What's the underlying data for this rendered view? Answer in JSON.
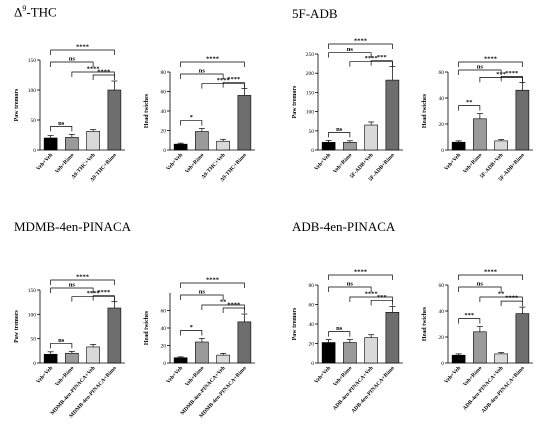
{
  "titles": {
    "thc_pre": "Δ",
    "thc_sup": "9",
    "thc_post": "-THC",
    "adb5f": "5F-ADB",
    "mdmb": "MDMB-4en-PINACA",
    "adb4en": "ADB-4en-PINACA"
  },
  "colors": {
    "veh_veh": "#000000",
    "veh_drug": "#9a9a9a",
    "drug_veh": "#d9d9d9",
    "drug_drug": "#6e6e6e"
  },
  "chart_data": [
    {
      "type": "bar",
      "group": "Δ9-THC",
      "ylabel": "Paw tremors",
      "ylim": [
        0,
        150
      ],
      "yticks": [
        0,
        50,
        100,
        150
      ],
      "categories": [
        "Veh+Veh",
        "Veh+Rimo",
        "Δ9-THC+Veh",
        "Δ9-THC+Rimo"
      ],
      "values": [
        20,
        21,
        31,
        100
      ],
      "errors": [
        4,
        5,
        3,
        15
      ],
      "significance": [
        {
          "pair": [
            0,
            1
          ],
          "label": "ns"
        },
        {
          "pair": [
            0,
            2
          ],
          "label": "ns"
        },
        {
          "pair": [
            0,
            3
          ],
          "label": "****"
        },
        {
          "pair": [
            1,
            3
          ],
          "label": "****"
        },
        {
          "pair": [
            2,
            3
          ],
          "label": "****"
        }
      ]
    },
    {
      "type": "bar",
      "group": "Δ9-THC",
      "ylabel": "Head twiches",
      "ylim": [
        0,
        80
      ],
      "yticks": [
        0,
        20,
        40,
        60,
        80
      ],
      "categories": [
        "Veh+Veh",
        "Veh+Rimo",
        "Δ9-THC+Veh",
        "Δ9-THC+Rimo"
      ],
      "values": [
        6,
        19,
        9,
        56
      ],
      "errors": [
        1,
        3,
        2,
        7
      ],
      "significance": [
        {
          "pair": [
            0,
            1
          ],
          "label": "*"
        },
        {
          "pair": [
            0,
            2
          ],
          "label": "ns"
        },
        {
          "pair": [
            0,
            3
          ],
          "label": "****"
        },
        {
          "pair": [
            1,
            3
          ],
          "label": "****"
        },
        {
          "pair": [
            2,
            3
          ],
          "label": "****"
        }
      ]
    },
    {
      "type": "bar",
      "group": "5F-ADB",
      "ylabel": "Paw tremors",
      "ylim": [
        0,
        250
      ],
      "yticks": [
        0,
        50,
        100,
        150,
        200,
        250
      ],
      "categories": [
        "Veh+Veh",
        "Veh+Rimo",
        "5F-ADB+Veh",
        "5F-ADB+Rimo"
      ],
      "values": [
        20,
        20,
        65,
        182
      ],
      "errors": [
        5,
        4,
        8,
        35
      ],
      "significance": [
        {
          "pair": [
            0,
            1
          ],
          "label": "ns"
        },
        {
          "pair": [
            0,
            2
          ],
          "label": "ns"
        },
        {
          "pair": [
            0,
            3
          ],
          "label": "****"
        },
        {
          "pair": [
            1,
            3
          ],
          "label": "****"
        },
        {
          "pair": [
            2,
            3
          ],
          "label": "***"
        }
      ]
    },
    {
      "type": "bar",
      "group": "5F-ADB",
      "ylabel": "Head twiches",
      "ylim": [
        0,
        60
      ],
      "yticks": [
        0,
        20,
        40,
        60
      ],
      "categories": [
        "Veh+Veh",
        "Veh+Rimo",
        "5F-ADB+Veh",
        "5F-ADB+Rimo"
      ],
      "values": [
        6,
        24,
        7,
        46
      ],
      "errors": [
        1,
        4,
        1,
        6
      ],
      "significance": [
        {
          "pair": [
            0,
            1
          ],
          "label": "**"
        },
        {
          "pair": [
            0,
            2
          ],
          "label": "ns"
        },
        {
          "pair": [
            0,
            3
          ],
          "label": "****"
        },
        {
          "pair": [
            1,
            3
          ],
          "label": "***"
        },
        {
          "pair": [
            2,
            3
          ],
          "label": "****"
        }
      ]
    },
    {
      "type": "bar",
      "group": "MDMB-4en-PINACA",
      "ylabel": "Paw tremors",
      "ylim": [
        0,
        150
      ],
      "yticks": [
        0,
        50,
        100,
        150
      ],
      "categories": [
        "Veh+Veh",
        "Veh+Rimo",
        "MDMB-4en-PINACA+Veh",
        "MDMB-4en-PINACA+Rimo"
      ],
      "values": [
        18,
        20,
        33,
        113
      ],
      "errors": [
        5,
        4,
        5,
        13
      ],
      "significance": [
        {
          "pair": [
            0,
            1
          ],
          "label": "ns"
        },
        {
          "pair": [
            0,
            2
          ],
          "label": "ns"
        },
        {
          "pair": [
            0,
            3
          ],
          "label": "****"
        },
        {
          "pair": [
            1,
            3
          ],
          "label": "****"
        },
        {
          "pair": [
            2,
            3
          ],
          "label": "****"
        }
      ]
    },
    {
      "type": "bar",
      "group": "MDMB-4en-PINACA",
      "ylabel": "Head twiches",
      "ylim": [
        0,
        80
      ],
      "yticks": [
        0,
        20,
        40,
        60
      ],
      "categories": [
        "Veh+Veh",
        "Veh+Rimo",
        "MDMB-4en-PINACA+Veh",
        "MDMB-4en-PINACA+Rimo"
      ],
      "values": [
        6,
        24,
        9,
        47
      ],
      "errors": [
        1,
        4,
        2,
        9
      ],
      "significance": [
        {
          "pair": [
            0,
            1
          ],
          "label": "*"
        },
        {
          "pair": [
            0,
            2
          ],
          "label": "ns"
        },
        {
          "pair": [
            0,
            3
          ],
          "label": "****"
        },
        {
          "pair": [
            1,
            3
          ],
          "label": "**"
        },
        {
          "pair": [
            2,
            3
          ],
          "label": "****"
        }
      ]
    },
    {
      "type": "bar",
      "group": "ADB-4en-PINACA",
      "ylabel": "Paw tremors",
      "ylim": [
        0,
        80
      ],
      "yticks": [
        0,
        20,
        40,
        60,
        80
      ],
      "categories": [
        "Veh+Veh",
        "Veh+Rimo",
        "ADB-4en-PINACA+Veh",
        "ADB-4en-PINACA+Rimo"
      ],
      "values": [
        21,
        21,
        26,
        52
      ],
      "errors": [
        3,
        3,
        3,
        6
      ],
      "significance": [
        {
          "pair": [
            0,
            1
          ],
          "label": "ns"
        },
        {
          "pair": [
            0,
            2
          ],
          "label": "ns"
        },
        {
          "pair": [
            0,
            3
          ],
          "label": "****"
        },
        {
          "pair": [
            1,
            3
          ],
          "label": "****"
        },
        {
          "pair": [
            2,
            3
          ],
          "label": "***"
        }
      ]
    },
    {
      "type": "bar",
      "group": "ADB-4en-PINACA",
      "ylabel": "Head twiches",
      "ylim": [
        0,
        60
      ],
      "yticks": [
        0,
        20,
        40,
        60
      ],
      "categories": [
        "Veh+Veh",
        "Veh+Rimo",
        "ADB-4en-PINACA+Veh",
        "ADB-4en-PINACA+Rimo"
      ],
      "values": [
        6,
        24,
        7,
        38
      ],
      "errors": [
        1,
        4,
        1,
        5
      ],
      "significance": [
        {
          "pair": [
            0,
            1
          ],
          "label": "***"
        },
        {
          "pair": [
            0,
            2
          ],
          "label": "ns"
        },
        {
          "pair": [
            0,
            3
          ],
          "label": "****"
        },
        {
          "pair": [
            1,
            3
          ],
          "label": "**"
        },
        {
          "pair": [
            2,
            3
          ],
          "label": "****"
        }
      ]
    }
  ]
}
